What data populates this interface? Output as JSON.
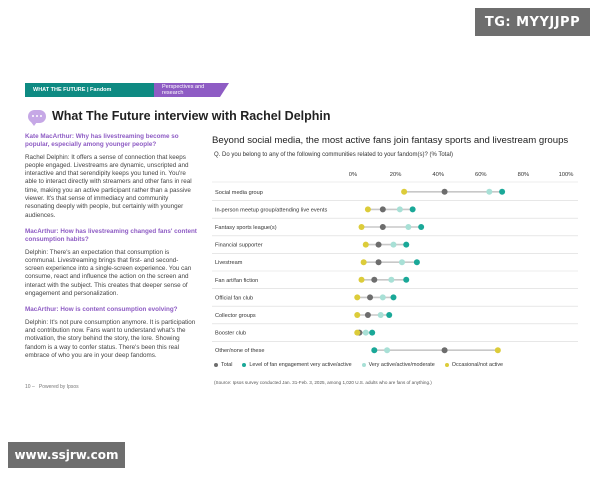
{
  "watermarks": {
    "top": "TG: MYYJJPP",
    "bottom": "www.ssjrw.com"
  },
  "header": {
    "left": "WHAT THE FUTURE | Fandom",
    "right": "Perspectives and research"
  },
  "page_title": "What The Future interview with Rachel Delphin",
  "interview": [
    {
      "type": "q",
      "text": "Kate MacArthur: Why has livestreaming become so popular, especially among younger people?"
    },
    {
      "type": "a",
      "text": "Rachel Delphin: It offers a sense of connection that keeps people engaged. Livestreams are dynamic, unscripted and interactive and that serendipity keeps you tuned in. You're able to interact directly with streamers and other fans in real time, making you an active participant rather than a passive viewer. It's that sense of immediacy and community resonating deeply with people, but certainly with younger audiences."
    },
    {
      "type": "q",
      "text": "MacArthur: How has livestreaming changed fans' content consumption habits?"
    },
    {
      "type": "a",
      "text": "Delphin: There's an expectation that consumption is communal. Livestreaming brings that first- and second-screen experience into a single-screen experience. You can consume, react and influence the action on the screen and interact with the subject. This creates that deeper sense of engagement and personalization."
    },
    {
      "type": "q",
      "text": "MacArthur: How is content consumption evolving?"
    },
    {
      "type": "a",
      "text": "Delphin: It's not pure consumption anymore. It is participation and contribution now. Fans want to understand what's the motivation, the story behind the story, the lore. Showing fandom is a way to confer status. There's been this real embrace of who you are in your deep fandoms."
    }
  ],
  "footer": {
    "page": "10 –",
    "powered": "Powered by Ipsos"
  },
  "chart_data": {
    "type": "scatter",
    "title": "Beyond social media, the most active fans join fantasy sports and livestream groups",
    "subtitle": "Q. Do you belong to any of the following communities related to your fandom(s)? (% Total)",
    "xlim": [
      0,
      100
    ],
    "xticks": [
      "0%",
      "20%",
      "40%",
      "60%",
      "80%",
      "100%"
    ],
    "categories": [
      "Social media group",
      "In-person meetup group/attending live events",
      "Fantasy sports league(s)",
      "Financial supporter",
      "Livestream",
      "Fan art/fan fiction",
      "Official fan club",
      "Collector groups",
      "Booster club",
      "Other/none of these"
    ],
    "series": [
      {
        "name": "Total",
        "color": "#6d6d6d",
        "values": [
          43,
          14,
          14,
          12,
          12,
          10,
          8,
          7,
          3,
          43
        ]
      },
      {
        "name": "Level of fan engagement very active/active",
        "color": "#1aa898",
        "values": [
          70,
          28,
          32,
          25,
          30,
          25,
          19,
          17,
          9,
          10
        ]
      },
      {
        "name": "Very active/active/moderate",
        "color": "#a8e0d6",
        "values": [
          64,
          22,
          26,
          19,
          23,
          18,
          14,
          13,
          6,
          16
        ]
      },
      {
        "name": "Occasional/not active",
        "color": "#dccc3a",
        "values": [
          24,
          7,
          4,
          6,
          5,
          4,
          2,
          2,
          2,
          68
        ]
      }
    ],
    "legend_position": "bottom",
    "grid": true,
    "source": "(Source: Ipsos survey conducted Jan. 31-Feb. 3, 2025, among 1,020 U.S. adults who are fans of anything.)"
  }
}
